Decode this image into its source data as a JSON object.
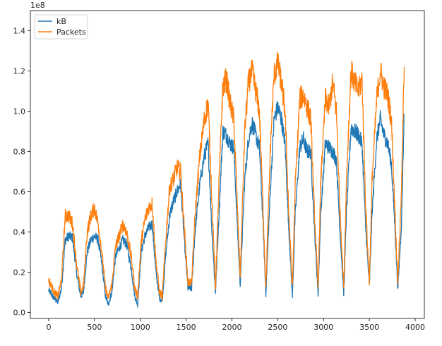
{
  "chart_data": {
    "type": "line",
    "title": "",
    "xlabel": "",
    "ylabel": "",
    "y_offset_label": "1e8",
    "xlim": [
      -200,
      4100
    ],
    "ylim": [
      -0.03,
      1.5
    ],
    "xticks": [
      0,
      500,
      1000,
      1500,
      2000,
      2500,
      3000,
      3500,
      4000
    ],
    "xtick_labels": [
      "0",
      "500",
      "1000",
      "1500",
      "2000",
      "2500",
      "3000",
      "3500",
      "4000"
    ],
    "yticks": [
      0.0,
      0.2,
      0.4,
      0.6,
      0.8,
      1.0,
      1.2,
      1.4
    ],
    "ytick_labels": [
      "0.0",
      "0.2",
      "0.4",
      "0.6",
      "0.8",
      "1.0",
      "1.2",
      "1.4"
    ],
    "grid": false,
    "legend_position": "top-left",
    "series": [
      {
        "name": "kB",
        "color": "#1f77b4",
        "x": [
          0,
          60,
          100,
          140,
          180,
          220,
          260,
          310,
          350,
          380,
          420,
          460,
          500,
          540,
          580,
          620,
          650,
          690,
          730,
          770,
          810,
          850,
          900,
          940,
          970,
          1010,
          1050,
          1090,
          1130,
          1170,
          1210,
          1240,
          1280,
          1320,
          1360,
          1400,
          1440,
          1480,
          1520,
          1560,
          1600,
          1650,
          1700,
          1740,
          1780,
          1820,
          1860,
          1900,
          1940,
          1980,
          2020,
          2060,
          2090,
          2140,
          2180,
          2220,
          2260,
          2300,
          2340,
          2370,
          2420,
          2460,
          2500,
          2540,
          2580,
          2620,
          2660,
          2690,
          2740,
          2780,
          2820,
          2860,
          2900,
          2940,
          2970,
          3020,
          3060,
          3100,
          3140,
          3180,
          3220,
          3250,
          3300,
          3340,
          3380,
          3420,
          3460,
          3500,
          3530,
          3580,
          3620,
          3660,
          3700,
          3740,
          3780,
          3810,
          3850,
          3880
        ],
        "values": [
          0.11,
          0.07,
          0.05,
          0.12,
          0.36,
          0.38,
          0.37,
          0.18,
          0.08,
          0.1,
          0.3,
          0.36,
          0.38,
          0.36,
          0.24,
          0.08,
          0.04,
          0.1,
          0.28,
          0.32,
          0.36,
          0.34,
          0.22,
          0.08,
          0.04,
          0.3,
          0.38,
          0.42,
          0.44,
          0.2,
          0.07,
          0.06,
          0.3,
          0.48,
          0.55,
          0.6,
          0.64,
          0.36,
          0.12,
          0.12,
          0.42,
          0.64,
          0.78,
          0.84,
          0.42,
          0.1,
          0.5,
          0.9,
          0.88,
          0.84,
          0.82,
          0.42,
          0.14,
          0.66,
          0.86,
          0.94,
          0.88,
          0.82,
          0.44,
          0.09,
          0.62,
          0.96,
          1.02,
          0.96,
          0.84,
          0.42,
          0.08,
          0.48,
          0.82,
          0.86,
          0.8,
          0.8,
          0.42,
          0.09,
          0.5,
          0.84,
          0.82,
          0.8,
          0.76,
          0.4,
          0.09,
          0.5,
          0.92,
          0.9,
          0.88,
          0.84,
          0.42,
          0.13,
          0.5,
          0.86,
          0.96,
          0.88,
          0.84,
          0.74,
          0.42,
          0.11,
          0.44,
          1.0
        ],
        "noise": 0.032
      },
      {
        "name": "Packets",
        "color": "#ff7f0e",
        "x": [
          0,
          60,
          100,
          140,
          180,
          220,
          260,
          310,
          350,
          380,
          420,
          460,
          500,
          540,
          580,
          620,
          650,
          690,
          730,
          770,
          810,
          850,
          900,
          940,
          970,
          1010,
          1050,
          1090,
          1130,
          1170,
          1210,
          1240,
          1280,
          1320,
          1360,
          1400,
          1440,
          1480,
          1520,
          1560,
          1600,
          1650,
          1700,
          1740,
          1780,
          1820,
          1860,
          1900,
          1940,
          1980,
          2020,
          2060,
          2090,
          2140,
          2180,
          2220,
          2260,
          2300,
          2340,
          2370,
          2420,
          2460,
          2500,
          2540,
          2580,
          2620,
          2660,
          2690,
          2740,
          2780,
          2820,
          2860,
          2900,
          2940,
          2970,
          3020,
          3060,
          3100,
          3140,
          3180,
          3220,
          3250,
          3300,
          3340,
          3380,
          3420,
          3460,
          3500,
          3530,
          3580,
          3620,
          3660,
          3700,
          3740,
          3780,
          3810,
          3850,
          3880
        ],
        "values": [
          0.16,
          0.1,
          0.08,
          0.16,
          0.48,
          0.48,
          0.44,
          0.22,
          0.1,
          0.13,
          0.4,
          0.48,
          0.52,
          0.44,
          0.3,
          0.12,
          0.07,
          0.14,
          0.33,
          0.38,
          0.44,
          0.4,
          0.28,
          0.12,
          0.08,
          0.35,
          0.46,
          0.52,
          0.54,
          0.26,
          0.1,
          0.08,
          0.38,
          0.62,
          0.66,
          0.72,
          0.7,
          0.42,
          0.15,
          0.15,
          0.5,
          0.78,
          0.96,
          1.04,
          0.58,
          0.12,
          0.66,
          1.12,
          1.16,
          1.04,
          0.96,
          0.52,
          0.18,
          0.9,
          1.14,
          1.2,
          1.1,
          1.0,
          0.52,
          0.12,
          0.82,
          1.18,
          1.24,
          1.14,
          1.0,
          0.5,
          0.12,
          0.62,
          1.06,
          1.08,
          1.02,
          0.96,
          0.5,
          0.12,
          0.66,
          1.06,
          1.02,
          1.14,
          1.0,
          0.5,
          0.13,
          0.66,
          1.2,
          1.14,
          1.1,
          1.16,
          0.52,
          0.15,
          0.66,
          1.06,
          1.2,
          1.12,
          1.08,
          0.96,
          0.5,
          0.15,
          0.6,
          1.24
        ],
        "noise": 0.04
      }
    ]
  }
}
